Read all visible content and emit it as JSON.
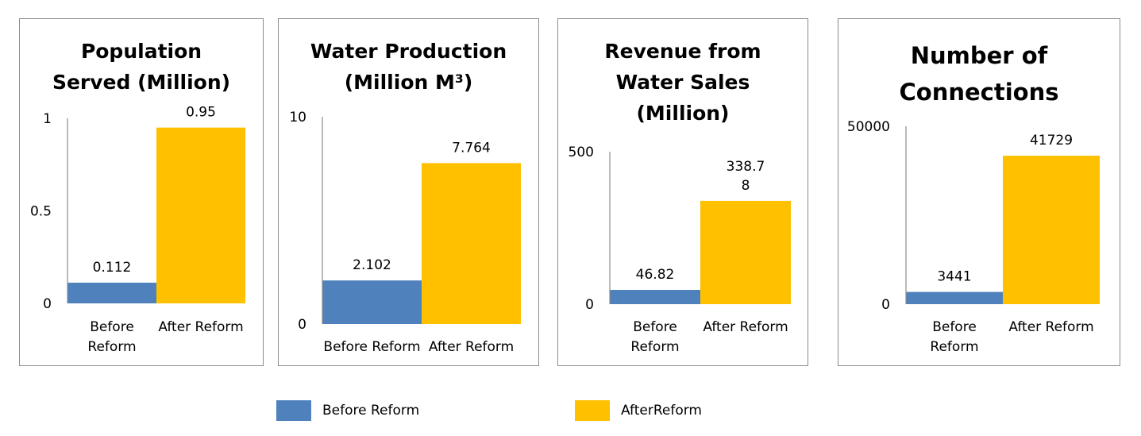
{
  "colors": {
    "before": "#4f81bd",
    "after": "#ffc000"
  },
  "legend": [
    "Before Reform",
    "AfterReform"
  ],
  "chart_data": [
    {
      "type": "bar",
      "title": [
        "Population",
        "Served (Million)"
      ],
      "categories": [
        [
          "Before",
          "Reform"
        ],
        [
          "After Reform"
        ]
      ],
      "values": [
        0.112,
        0.95
      ],
      "data_labels": [
        [
          "0.112"
        ],
        [
          "0.95"
        ]
      ],
      "yticks": [
        "0",
        "0.5",
        "1"
      ],
      "ylim": [
        0,
        1
      ]
    },
    {
      "type": "bar",
      "title": [
        "Water Production",
        "(Million M³)"
      ],
      "categories": [
        [
          "Before Reform"
        ],
        [
          "After Reform"
        ]
      ],
      "values": [
        2.102,
        7.764
      ],
      "data_labels": [
        [
          "2.102"
        ],
        [
          "7.764"
        ]
      ],
      "yticks": [
        "0",
        "10"
      ],
      "ylim": [
        0,
        10
      ]
    },
    {
      "type": "bar",
      "title": [
        "Revenue from",
        "Water Sales",
        "(Million)"
      ],
      "categories": [
        [
          "Before",
          "Reform"
        ],
        [
          "After Reform"
        ]
      ],
      "values": [
        46.82,
        338.78
      ],
      "data_labels": [
        [
          "46.82"
        ],
        [
          "338.7",
          "8"
        ]
      ],
      "yticks": [
        "0",
        "500"
      ],
      "ylim": [
        0,
        500
      ]
    },
    {
      "type": "bar",
      "title": [
        "Number of",
        "Connections"
      ],
      "categories": [
        [
          "Before",
          "Reform"
        ],
        [
          "After Reform"
        ]
      ],
      "values": [
        3441,
        41729
      ],
      "data_labels": [
        [
          "3441"
        ],
        [
          "41729"
        ]
      ],
      "yticks": [
        "0",
        "50000"
      ],
      "ylim": [
        0,
        50000
      ]
    }
  ]
}
